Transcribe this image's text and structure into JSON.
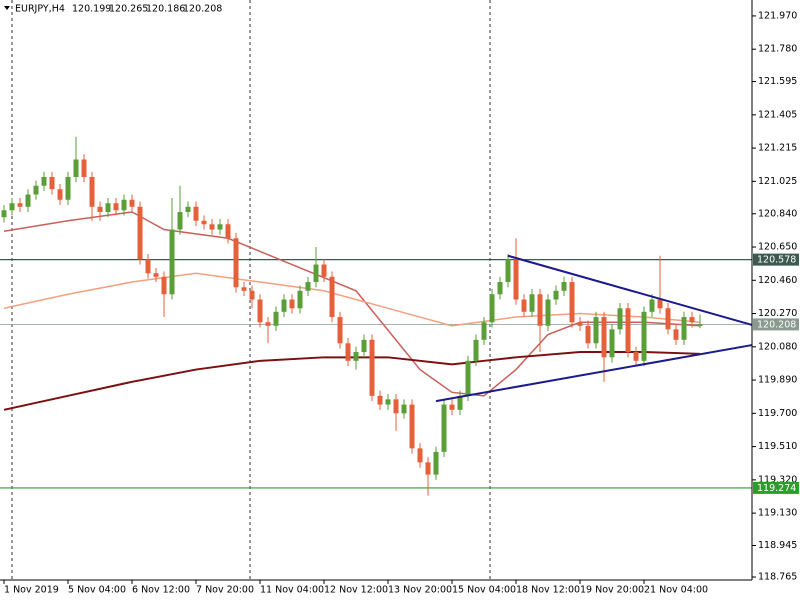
{
  "chart_data": {
    "type": "candlestick",
    "symbol": "EURJPY,H4",
    "candles": [
      [
        120.82,
        120.89,
        120.79,
        120.86
      ],
      [
        120.86,
        120.93,
        120.83,
        120.9
      ],
      [
        120.9,
        120.93,
        120.85,
        120.88
      ],
      [
        120.88,
        120.98,
        120.85,
        120.95
      ],
      [
        120.95,
        121.03,
        120.92,
        121.0
      ],
      [
        121.0,
        121.08,
        120.97,
        121.05
      ],
      [
        121.05,
        121.08,
        120.95,
        120.98
      ],
      [
        120.98,
        121.01,
        120.89,
        120.92
      ],
      [
        120.92,
        121.08,
        120.89,
        121.05
      ],
      [
        121.05,
        121.28,
        121.02,
        121.15
      ],
      [
        121.15,
        121.18,
        121.02,
        121.05
      ],
      [
        121.05,
        121.08,
        120.8,
        120.88
      ],
      [
        120.88,
        120.91,
        120.8,
        120.85
      ],
      [
        120.85,
        120.93,
        120.82,
        120.9
      ],
      [
        120.9,
        120.93,
        120.83,
        120.86
      ],
      [
        120.86,
        120.95,
        120.83,
        120.92
      ],
      [
        120.92,
        120.95,
        120.85,
        120.88
      ],
      [
        120.88,
        120.91,
        120.55,
        120.58
      ],
      [
        120.58,
        120.61,
        120.47,
        120.5
      ],
      [
        120.5,
        120.53,
        120.45,
        120.48
      ],
      [
        120.48,
        120.51,
        120.25,
        120.38
      ],
      [
        120.38,
        120.93,
        120.35,
        120.75
      ],
      [
        120.75,
        121.0,
        120.72,
        120.85
      ],
      [
        120.85,
        120.91,
        120.82,
        120.88
      ],
      [
        120.88,
        120.91,
        120.77,
        120.8
      ],
      [
        120.8,
        120.83,
        120.75,
        120.78
      ],
      [
        120.78,
        120.81,
        120.72,
        120.75
      ],
      [
        120.75,
        120.81,
        120.72,
        120.78
      ],
      [
        120.78,
        120.81,
        120.67,
        120.7
      ],
      [
        120.7,
        120.73,
        120.39,
        120.42
      ],
      [
        120.42,
        120.45,
        120.37,
        120.4
      ],
      [
        120.4,
        120.43,
        120.3,
        120.35
      ],
      [
        120.35,
        120.38,
        120.19,
        120.22
      ],
      [
        120.22,
        120.25,
        120.1,
        120.2
      ],
      [
        120.2,
        120.31,
        120.17,
        120.28
      ],
      [
        120.28,
        120.38,
        120.25,
        120.35
      ],
      [
        120.35,
        120.38,
        120.27,
        120.3
      ],
      [
        120.3,
        120.43,
        120.27,
        120.4
      ],
      [
        120.4,
        120.48,
        120.37,
        120.45
      ],
      [
        120.45,
        120.65,
        120.42,
        120.55
      ],
      [
        120.55,
        120.58,
        120.45,
        120.48
      ],
      [
        120.48,
        120.51,
        120.22,
        120.25
      ],
      [
        120.25,
        120.28,
        120.07,
        120.1
      ],
      [
        120.1,
        120.13,
        119.97,
        120.0
      ],
      [
        120.0,
        120.08,
        119.95,
        120.05
      ],
      [
        120.05,
        120.15,
        120.02,
        120.12
      ],
      [
        120.12,
        120.15,
        119.77,
        119.8
      ],
      [
        119.8,
        119.83,
        119.72,
        119.75
      ],
      [
        119.75,
        119.81,
        119.72,
        119.78
      ],
      [
        119.78,
        119.81,
        119.6,
        119.7
      ],
      [
        119.7,
        119.78,
        119.67,
        119.75
      ],
      [
        119.75,
        119.78,
        119.47,
        119.5
      ],
      [
        119.5,
        119.53,
        119.39,
        119.42
      ],
      [
        119.42,
        119.45,
        119.23,
        119.35
      ],
      [
        119.35,
        119.51,
        119.32,
        119.48
      ],
      [
        119.48,
        119.78,
        119.45,
        119.75
      ],
      [
        119.75,
        119.78,
        119.69,
        119.72
      ],
      [
        119.72,
        119.83,
        119.69,
        119.8
      ],
      [
        119.8,
        120.03,
        119.77,
        120.0
      ],
      [
        120.0,
        120.15,
        119.97,
        120.12
      ],
      [
        120.12,
        120.25,
        120.09,
        120.22
      ],
      [
        120.22,
        120.41,
        120.19,
        120.38
      ],
      [
        120.38,
        120.48,
        120.35,
        120.45
      ],
      [
        120.45,
        120.61,
        120.42,
        120.58
      ],
      [
        120.58,
        120.7,
        120.32,
        120.35
      ],
      [
        120.35,
        120.38,
        120.25,
        120.28
      ],
      [
        120.28,
        120.41,
        120.25,
        120.38
      ],
      [
        120.38,
        120.41,
        120.05,
        120.2
      ],
      [
        120.2,
        120.38,
        120.17,
        120.35
      ],
      [
        120.35,
        120.43,
        120.32,
        120.4
      ],
      [
        120.4,
        120.48,
        120.37,
        120.45
      ],
      [
        120.45,
        120.48,
        120.19,
        120.22
      ],
      [
        120.22,
        120.25,
        120.17,
        120.2
      ],
      [
        120.2,
        120.23,
        120.07,
        120.1
      ],
      [
        120.1,
        120.28,
        120.07,
        120.25
      ],
      [
        120.25,
        120.28,
        119.88,
        120.02
      ],
      [
        120.02,
        120.21,
        119.99,
        120.18
      ],
      [
        120.18,
        120.33,
        120.15,
        120.3
      ],
      [
        120.3,
        120.33,
        120.02,
        120.05
      ],
      [
        120.05,
        120.08,
        119.97,
        120.0
      ],
      [
        120.0,
        120.31,
        119.97,
        120.28
      ],
      [
        120.28,
        120.38,
        120.25,
        120.35
      ],
      [
        120.35,
        120.6,
        120.27,
        120.3
      ],
      [
        120.3,
        120.33,
        120.15,
        120.18
      ],
      [
        120.18,
        120.21,
        120.09,
        120.12
      ],
      [
        120.12,
        120.28,
        120.09,
        120.25
      ],
      [
        120.25,
        120.28,
        120.19,
        120.22
      ],
      [
        120.199,
        120.265,
        120.186,
        120.208
      ]
    ],
    "categories": [
      "1 Nov 2019",
      null,
      null,
      null,
      null,
      null,
      null,
      null,
      "5 Nov 04:00",
      null,
      null,
      null,
      null,
      null,
      null,
      null,
      "6 Nov 12:00",
      null,
      null,
      null,
      null,
      null,
      null,
      null,
      "7 Nov 20:00",
      null,
      null,
      null,
      null,
      null,
      null,
      null,
      "11 Nov 04:00",
      null,
      null,
      null,
      null,
      null,
      null,
      null,
      "12 Nov 12:00",
      null,
      null,
      null,
      null,
      null,
      null,
      null,
      "13 Nov 20:00",
      null,
      null,
      null,
      null,
      null,
      null,
      null,
      "15 Nov 04:00",
      null,
      null,
      null,
      null,
      null,
      null,
      null,
      "18 Nov 12:00",
      null,
      null,
      null,
      null,
      null,
      null,
      null,
      "19 Nov 20:00",
      null,
      null,
      null,
      null,
      null,
      null,
      null,
      "21 Nov 04:00",
      null,
      null,
      null,
      null,
      null,
      null,
      null
    ],
    "bull_color": "#5a9e38",
    "bear_color": "#e5603a",
    "moving_averages": [
      {
        "color": "#c8605a",
        "x": [
          0,
          8,
          16,
          20,
          28,
          36,
          44,
          52,
          56,
          60,
          64,
          68,
          72,
          80,
          87
        ],
        "values": [
          120.74,
          120.8,
          120.85,
          120.75,
          120.7,
          120.55,
          120.4,
          119.95,
          119.82,
          119.8,
          119.95,
          120.15,
          120.22,
          120.22,
          120.2
        ]
      },
      {
        "color": "#f4a080",
        "x": [
          0,
          8,
          16,
          24,
          32,
          40,
          48,
          56,
          64,
          72,
          80,
          87
        ],
        "values": [
          120.3,
          120.38,
          120.45,
          120.5,
          120.45,
          120.4,
          120.3,
          120.2,
          120.25,
          120.27,
          120.25,
          120.22
        ]
      },
      {
        "color": "#7a1010",
        "x": [
          0,
          8,
          16,
          24,
          32,
          40,
          48,
          56,
          60,
          64,
          72,
          80,
          87
        ],
        "values": [
          119.72,
          119.8,
          119.88,
          119.95,
          120.0,
          120.02,
          120.02,
          119.98,
          120.0,
          120.02,
          120.05,
          120.05,
          120.04
        ]
      }
    ],
    "trendlines": [
      {
        "color": "#1a1a8c",
        "x": [
          63,
          93.5
        ],
        "values": [
          120.6,
          120.205
        ]
      },
      {
        "color": "#1a1a8c",
        "x": [
          54,
          93.5
        ],
        "values": [
          119.77,
          120.09
        ]
      }
    ],
    "hlines": [
      {
        "value": 120.578,
        "color": "#3c5a50"
      },
      {
        "value": 120.208,
        "color": "#8a9a90"
      },
      {
        "value": 119.274,
        "color": "#2aa02a"
      }
    ],
    "ylim": [
      118.748,
      122.061
    ],
    "yticks": [
      {
        "value": 121.97,
        "label": "121.970"
      },
      {
        "value": 121.78,
        "label": "121.780"
      },
      121.595,
      121.405,
      121.215,
      121.025,
      {
        "value": 120.84,
        "label": "120.840"
      },
      {
        "value": 120.65,
        "label": "120.650"
      },
      {
        "value": 120.46,
        "label": "120.460"
      },
      {
        "value": 120.27,
        "label": "120.270"
      },
      {
        "value": 120.08,
        "label": "120.080"
      },
      {
        "value": 119.89,
        "label": "119.890"
      },
      {
        "value": 119.7,
        "label": "119.700"
      },
      {
        "value": 119.51,
        "label": "119.510"
      },
      {
        "value": 119.32,
        "label": "119.320"
      },
      {
        "value": 119.13,
        "label": "119.130"
      },
      118.945,
      118.765
    ]
  }
}
